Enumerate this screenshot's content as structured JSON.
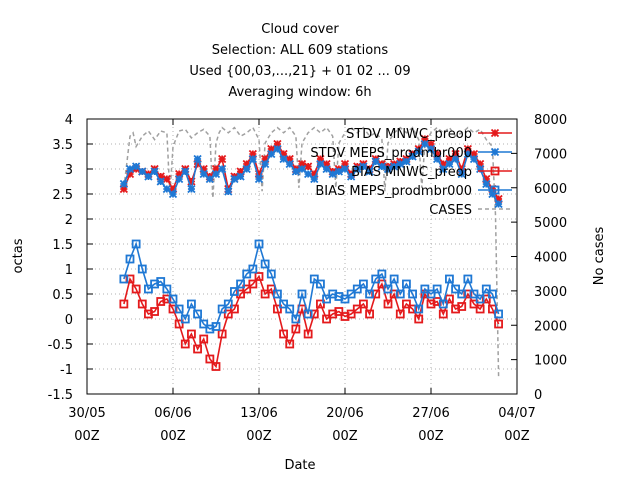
{
  "chart_data": {
    "type": "line",
    "title_lines": [
      "Cloud cover",
      "Selection: ALL    609 stations",
      "Used {00,03,...,21} + 01 02 ... 09",
      "Averaging window:  6h"
    ],
    "xlabel": "Date",
    "ylabel": "octas",
    "y2label": "No cases",
    "xlim": [
      0,
      35
    ],
    "ylim": [
      -1.5,
      4
    ],
    "y2lim": [
      0,
      8000
    ],
    "x_ticks": [
      {
        "pos": 0,
        "date": "30/05",
        "hour": "00Z"
      },
      {
        "pos": 7,
        "date": "06/06",
        "hour": "00Z"
      },
      {
        "pos": 14,
        "date": "13/06",
        "hour": "00Z"
      },
      {
        "pos": 21,
        "date": "20/06",
        "hour": "00Z"
      },
      {
        "pos": 28,
        "date": "27/06",
        "hour": "00Z"
      },
      {
        "pos": 35,
        "date": "04/07",
        "hour": "00Z"
      }
    ],
    "y_ticks": [
      -1.5,
      -1,
      -0.5,
      0,
      0.5,
      1,
      1.5,
      2,
      2.5,
      3,
      3.5,
      4
    ],
    "y2_ticks": [
      0,
      1000,
      2000,
      3000,
      4000,
      5000,
      6000,
      7000,
      8000
    ],
    "grid": true,
    "legend_position": "top-right",
    "colors": {
      "mnwc": "#e41a1c",
      "meps": "#1f78d4",
      "cases": "#a0a0a0",
      "grid": "#b0b0b0"
    },
    "series": [
      {
        "name": "STDV MNWC_preop",
        "axis": "y1",
        "marker": "star",
        "color": "#e41a1c",
        "x": [
          3.0,
          3.5,
          4.0,
          4.5,
          5.0,
          5.5,
          6.0,
          6.5,
          7.0,
          7.5,
          8.0,
          8.5,
          9.0,
          9.5,
          10.0,
          10.5,
          11.0,
          11.5,
          12.0,
          12.5,
          13.0,
          13.5,
          14.0,
          14.5,
          15.0,
          15.5,
          16.0,
          16.5,
          17.0,
          17.5,
          18.0,
          18.5,
          19.0,
          19.5,
          20.0,
          20.5,
          21.0,
          21.5,
          22.0,
          22.5,
          23.0,
          23.5,
          24.0,
          24.5,
          25.0,
          25.5,
          26.0,
          26.5,
          27.0,
          27.5,
          28.0,
          28.5,
          29.0,
          29.5,
          30.0,
          30.5,
          31.0,
          31.5,
          32.0,
          32.5,
          33.0,
          33.5
        ],
        "values": [
          2.6,
          2.9,
          3.0,
          2.95,
          2.9,
          3.0,
          2.85,
          2.8,
          2.6,
          2.9,
          3.0,
          2.75,
          3.1,
          3.0,
          2.85,
          3.0,
          3.2,
          2.6,
          2.85,
          2.95,
          3.1,
          3.3,
          2.9,
          3.2,
          3.4,
          3.5,
          3.3,
          3.2,
          3.0,
          3.1,
          3.05,
          2.9,
          3.2,
          3.1,
          2.95,
          3.0,
          3.1,
          2.9,
          3.05,
          3.1,
          3.0,
          3.2,
          3.1,
          3.05,
          3.1,
          3.15,
          3.2,
          3.3,
          3.4,
          3.6,
          3.5,
          3.3,
          3.1,
          3.2,
          3.3,
          3.0,
          3.4,
          3.3,
          3.1,
          2.8,
          2.6,
          2.4
        ]
      },
      {
        "name": "STDV MEPS_prodmbr000",
        "axis": "y1",
        "marker": "star",
        "color": "#1f78d4",
        "x": [
          3.0,
          3.5,
          4.0,
          4.5,
          5.0,
          5.5,
          6.0,
          6.5,
          7.0,
          7.5,
          8.0,
          8.5,
          9.0,
          9.5,
          10.0,
          10.5,
          11.0,
          11.5,
          12.0,
          12.5,
          13.0,
          13.5,
          14.0,
          14.5,
          15.0,
          15.5,
          16.0,
          16.5,
          17.0,
          17.5,
          18.0,
          18.5,
          19.0,
          19.5,
          20.0,
          20.5,
          21.0,
          21.5,
          22.0,
          22.5,
          23.0,
          23.5,
          24.0,
          24.5,
          25.0,
          25.5,
          26.0,
          26.5,
          27.0,
          27.5,
          28.0,
          28.5,
          29.0,
          29.5,
          30.0,
          30.5,
          31.0,
          31.5,
          32.0,
          32.5,
          33.0,
          33.5
        ],
        "values": [
          2.7,
          3.0,
          3.05,
          2.95,
          2.85,
          2.95,
          2.75,
          2.6,
          2.5,
          2.8,
          2.95,
          2.6,
          3.2,
          2.9,
          2.8,
          2.9,
          3.0,
          2.55,
          2.8,
          2.85,
          3.0,
          3.2,
          2.8,
          3.1,
          3.3,
          3.4,
          3.2,
          3.1,
          2.95,
          3.0,
          2.9,
          2.8,
          3.1,
          3.0,
          2.9,
          2.95,
          3.0,
          2.85,
          3.0,
          3.05,
          2.95,
          3.15,
          3.05,
          3.0,
          3.05,
          3.1,
          3.15,
          3.25,
          3.35,
          3.5,
          3.4,
          3.2,
          3.0,
          3.1,
          3.2,
          2.9,
          3.3,
          3.2,
          3.0,
          2.7,
          2.5,
          2.3
        ]
      },
      {
        "name": "BIAS MNWC_preop",
        "axis": "y1",
        "marker": "square",
        "color": "#e41a1c",
        "x": [
          3.0,
          3.5,
          4.0,
          4.5,
          5.0,
          5.5,
          6.0,
          6.5,
          7.0,
          7.5,
          8.0,
          8.5,
          9.0,
          9.5,
          10.0,
          10.5,
          11.0,
          11.5,
          12.0,
          12.5,
          13.0,
          13.5,
          14.0,
          14.5,
          15.0,
          15.5,
          16.0,
          16.5,
          17.0,
          17.5,
          18.0,
          18.5,
          19.0,
          19.5,
          20.0,
          20.5,
          21.0,
          21.5,
          22.0,
          22.5,
          23.0,
          23.5,
          24.0,
          24.5,
          25.0,
          25.5,
          26.0,
          26.5,
          27.0,
          27.5,
          28.0,
          28.5,
          29.0,
          29.5,
          30.0,
          30.5,
          31.0,
          31.5,
          32.0,
          32.5,
          33.0,
          33.5
        ],
        "values": [
          0.3,
          0.8,
          0.6,
          0.3,
          0.1,
          0.15,
          0.35,
          0.4,
          0.2,
          -0.1,
          -0.5,
          -0.3,
          -0.6,
          -0.4,
          -0.8,
          -0.95,
          -0.3,
          0.1,
          0.2,
          0.5,
          0.6,
          0.7,
          0.85,
          0.5,
          0.6,
          0.2,
          -0.3,
          -0.5,
          -0.2,
          0.2,
          -0.3,
          0.1,
          0.3,
          0.0,
          0.1,
          0.15,
          0.05,
          0.1,
          0.2,
          0.3,
          0.1,
          0.5,
          0.7,
          0.3,
          0.5,
          0.1,
          0.3,
          0.2,
          0.0,
          0.5,
          0.3,
          0.35,
          0.1,
          0.4,
          0.2,
          0.25,
          0.5,
          0.3,
          0.2,
          0.4,
          0.2,
          -0.1
        ]
      },
      {
        "name": "BIAS MEPS_prodmbr000",
        "axis": "y1",
        "marker": "square",
        "color": "#1f78d4",
        "x": [
          3.0,
          3.5,
          4.0,
          4.5,
          5.0,
          5.5,
          6.0,
          6.5,
          7.0,
          7.5,
          8.0,
          8.5,
          9.0,
          9.5,
          10.0,
          10.5,
          11.0,
          11.5,
          12.0,
          12.5,
          13.0,
          13.5,
          14.0,
          14.5,
          15.0,
          15.5,
          16.0,
          16.5,
          17.0,
          17.5,
          18.0,
          18.5,
          19.0,
          19.5,
          20.0,
          20.5,
          21.0,
          21.5,
          22.0,
          22.5,
          23.0,
          23.5,
          24.0,
          24.5,
          25.0,
          25.5,
          26.0,
          26.5,
          27.0,
          27.5,
          28.0,
          28.5,
          29.0,
          29.5,
          30.0,
          30.5,
          31.0,
          31.5,
          32.0,
          32.5,
          33.0,
          33.5
        ],
        "values": [
          0.8,
          1.2,
          1.5,
          1.0,
          0.6,
          0.7,
          0.75,
          0.6,
          0.4,
          0.2,
          0.0,
          0.3,
          0.1,
          -0.1,
          -0.2,
          -0.15,
          0.2,
          0.3,
          0.55,
          0.7,
          0.9,
          1.0,
          1.5,
          1.1,
          0.9,
          0.5,
          0.3,
          0.2,
          0.0,
          0.5,
          0.1,
          0.8,
          0.7,
          0.4,
          0.5,
          0.45,
          0.4,
          0.5,
          0.6,
          0.7,
          0.5,
          0.8,
          0.9,
          0.6,
          0.8,
          0.5,
          0.7,
          0.5,
          0.2,
          0.6,
          0.5,
          0.6,
          0.3,
          0.8,
          0.6,
          0.5,
          0.8,
          0.5,
          0.4,
          0.6,
          0.5,
          0.1
        ]
      },
      {
        "name": "CASES",
        "axis": "y2",
        "marker": "none",
        "style": "dashed",
        "color": "#a0a0a0",
        "x": [
          3.0,
          3.5,
          3.75,
          4.0,
          4.5,
          5.0,
          5.5,
          6.0,
          6.5,
          6.75,
          7.0,
          7.5,
          8.0,
          8.5,
          9.0,
          9.5,
          10.0,
          10.25,
          10.5,
          10.75,
          11.0,
          11.5,
          12.0,
          12.5,
          13.0,
          13.5,
          14.0,
          14.25,
          14.5,
          15.0,
          15.5,
          16.0,
          16.5,
          17.0,
          17.25,
          17.5,
          18.0,
          18.5,
          19.0,
          19.5,
          20.0,
          20.25,
          20.5,
          21.0,
          21.5,
          22.0,
          22.5,
          23.0,
          23.5,
          24.0,
          24.25,
          24.5,
          25.0,
          25.5,
          26.0,
          26.5,
          27.0,
          27.25,
          27.5,
          28.0,
          28.5,
          29.0,
          29.5,
          30.0,
          30.5,
          31.0,
          31.5,
          32.0,
          32.5,
          33.0,
          33.25,
          33.5
        ],
        "values": [
          6000,
          7500,
          7600,
          7200,
          7500,
          7650,
          7400,
          7650,
          7600,
          5800,
          7200,
          7650,
          7700,
          7450,
          7600,
          7700,
          7500,
          5700,
          7300,
          7600,
          7750,
          7600,
          7750,
          7500,
          7600,
          7750,
          7400,
          5900,
          7300,
          7600,
          7750,
          7600,
          7750,
          7500,
          6000,
          7300,
          7600,
          7750,
          7600,
          7750,
          7500,
          6000,
          7300,
          7600,
          7750,
          7600,
          7750,
          7500,
          7600,
          7400,
          5900,
          7300,
          7600,
          7750,
          7600,
          7750,
          7400,
          6000,
          7300,
          7600,
          7750,
          7600,
          7750,
          7500,
          7600,
          7750,
          7600,
          7700,
          7400,
          7200,
          5200,
          500
        ]
      }
    ]
  }
}
